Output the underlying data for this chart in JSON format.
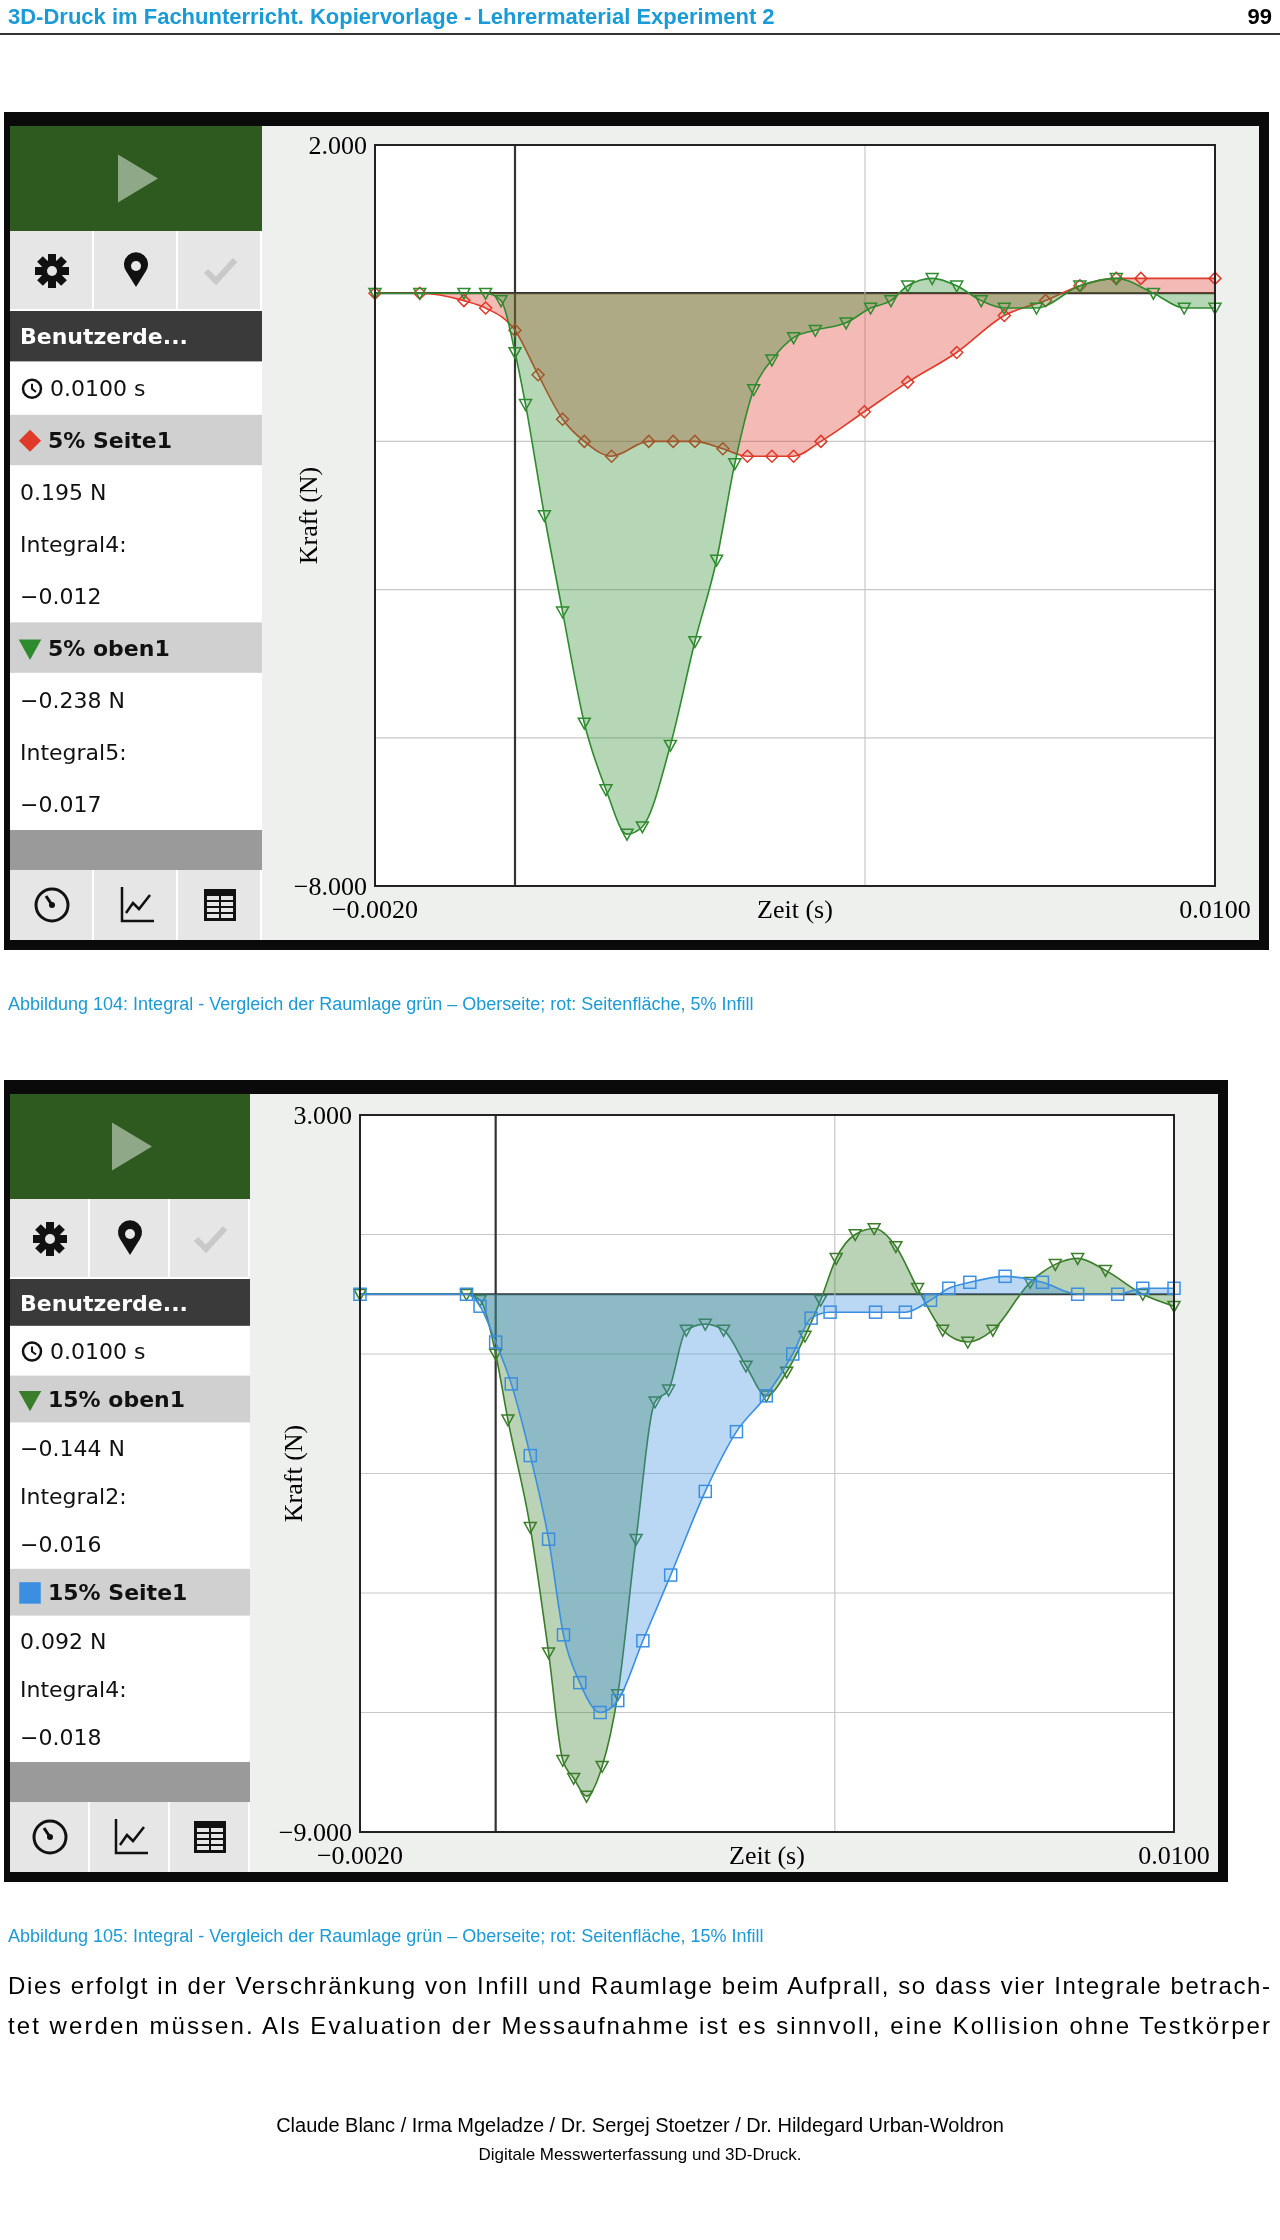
{
  "chart_data": [
    {
      "type": "area",
      "title": "3D-Druck im Fachunterricht. Kopiervorlage - Lehrermaterial Experiment 2",
      "xlabel": "Zeit (s)",
      "ylabel": "Kraft (N)",
      "xlim": [
        -0.002,
        0.01
      ],
      "ylim": [
        -8,
        2
      ],
      "xticks": [
        {
          "value": -0.002,
          "label": "−0.0020"
        },
        {
          "value": 0,
          "label": null
        },
        {
          "value": 0.005,
          "label": null
        },
        {
          "value": 0.01,
          "label": "0.0100"
        }
      ],
      "yticks": [
        {
          "value": 2,
          "label": "2.000"
        },
        {
          "value": 0,
          "label": null
        },
        {
          "value": -2,
          "label": null
        },
        {
          "value": -4,
          "label": null
        },
        {
          "value": -6,
          "label": null
        },
        {
          "value": -8,
          "label": "−8.000"
        }
      ],
      "grid": true,
      "legend": "left",
      "annotations": [
        "Benutzerde...",
        "0.0100 s",
        "0.195 N",
        "Integral4:",
        "−0.012",
        "−0.238 N",
        "Integral5:",
        "−0.017",
        "Abbildung 104: Integral - Vergleich der Raumlage grün – Oberseite; rot: Seitenfläche, 5% Infill",
        "99"
      ],
      "series": [
        {
          "name": "5% Seite1",
          "color": "#e03a2a",
          "marker": "diamond",
          "x": [
            -0.002,
            -0.00136,
            -0.00073,
            -0.00042,
            0.0,
            0.00033,
            0.00068,
            0.00099,
            0.00138,
            0.00191,
            0.00226,
            0.00257,
            0.00297,
            0.00332,
            0.00367,
            0.00398,
            0.00437,
            0.00499,
            0.00561,
            0.00631,
            0.00699,
            0.00758,
            0.00807,
            0.00859,
            0.00894,
            0.01
          ],
          "values": [
            0,
            0,
            -0.1,
            -0.2,
            -0.5,
            -1.1,
            -1.7,
            -2.0,
            -2.2,
            -2.0,
            -2.0,
            -2.0,
            -2.1,
            -2.2,
            -2.2,
            -2.2,
            -2.0,
            -1.6,
            -1.2,
            -0.8,
            -0.3,
            -0.1,
            0.1,
            0.2,
            0.2,
            0.2
          ]
        },
        {
          "name": "5% oben1",
          "color": "#2e8b2e",
          "marker": "triangle",
          "x": [
            -0.002,
            -0.00136,
            -0.00073,
            -0.00042,
            -0.0002,
            0.0,
            0.00015,
            0.00042,
            0.00068,
            0.00099,
            0.0013,
            0.0016,
            0.00182,
            0.00222,
            0.00257,
            0.00288,
            0.00314,
            0.00341,
            0.00367,
            0.00398,
            0.00429,
            0.00473,
            0.00508,
            0.00537,
            0.00561,
            0.00596,
            0.00631,
            0.00666,
            0.00699,
            0.00745,
            0.00807,
            0.00859,
            0.00912,
            0.00956,
            0.01
          ],
          "values": [
            0,
            0,
            0,
            0,
            -0.1,
            -0.8,
            -1.5,
            -3.0,
            -4.3,
            -5.8,
            -6.7,
            -7.3,
            -7.2,
            -6.1,
            -4.7,
            -3.6,
            -2.3,
            -1.3,
            -0.9,
            -0.6,
            -0.5,
            -0.4,
            -0.2,
            -0.1,
            0.1,
            0.2,
            0.1,
            -0.1,
            -0.2,
            -0.2,
            0.1,
            0.2,
            0.0,
            -0.2,
            -0.2
          ]
        }
      ]
    },
    {
      "type": "area",
      "xlabel": "Zeit (s)",
      "ylabel": "Kraft (N)",
      "xlim": [
        -0.002,
        0.01
      ],
      "ylim": [
        -9,
        3
      ],
      "xticks": [
        {
          "value": -0.002,
          "label": "−0.0020"
        },
        {
          "value": 0,
          "label": null
        },
        {
          "value": 0.005,
          "label": null
        },
        {
          "value": 0.01,
          "label": "0.0100"
        }
      ],
      "yticks": [
        {
          "value": 3,
          "label": "3.000"
        },
        {
          "value": 1,
          "label": null
        },
        {
          "value": 0,
          "label": null
        },
        {
          "value": -1,
          "label": null
        },
        {
          "value": -3,
          "label": null
        },
        {
          "value": -5,
          "label": null
        },
        {
          "value": -7,
          "label": null
        },
        {
          "value": -9,
          "label": "−9.000"
        }
      ],
      "grid": true,
      "legend": "left",
      "annotations": [
        "Benutzerde...",
        "0.0100 s",
        "−0.144 N",
        "Integral2:",
        "−0.016",
        "0.092 N",
        "Integral4:",
        "−0.018",
        "Abbildung 105: Integral - Vergleich der Raumlage grün – Oberseite; rot: Seitenfläche, 15% Infill",
        "Dies erfolgt in der Verschränkung von Infill und Raumlage beim Aufprall, so dass vier Integrale betrach-",
        "tet werden müssen. Als Evaluation der Messaufnahme ist es sinnvoll, eine Kollision ohne Testkörper",
        "Claude Blanc / Irma Mgeladze / Dr. Sergej Stoetzer / Dr. Hildegard Urban-Woldron",
        "Digitale Messwerterfassung und 3D-Druck."
      ],
      "series": [
        {
          "name": "15% oben1",
          "color": "#3a7d2a",
          "marker": "triangle",
          "x": [
            -0.002,
            -0.00043,
            -0.00023,
            0.0,
            0.00018,
            0.00051,
            0.00078,
            0.00099,
            0.00115,
            0.00134,
            0.00157,
            0.0018,
            0.00207,
            0.00235,
            0.00255,
            0.00281,
            0.00309,
            0.00336,
            0.00369,
            0.00399,
            0.00429,
            0.00456,
            0.00479,
            0.00502,
            0.0053,
            0.00558,
            0.0059,
            0.00622,
            0.00659,
            0.00696,
            0.00733,
            0.00788,
            0.00825,
            0.00858,
            0.00899,
            0.00954,
            0.01
          ],
          "values": [
            0,
            0,
            -0.1,
            -1.0,
            -2.1,
            -3.9,
            -6.0,
            -7.8,
            -8.1,
            -8.4,
            -7.9,
            -6.7,
            -4.1,
            -1.8,
            -1.6,
            -0.6,
            -0.5,
            -0.6,
            -1.2,
            -1.7,
            -1.3,
            -0.7,
            -0.1,
            0.6,
            1.0,
            1.1,
            0.8,
            0.1,
            -0.6,
            -0.8,
            -0.6,
            0.2,
            0.5,
            0.6,
            0.4,
            0.0,
            -0.2
          ]
        },
        {
          "name": "15% Seite1",
          "color": "#3a8fe0",
          "marker": "square",
          "x": [
            -0.002,
            -0.00043,
            -0.00023,
            0.0,
            0.00023,
            0.00051,
            0.00078,
            0.001,
            0.00124,
            0.00154,
            0.0018,
            0.00217,
            0.00258,
            0.00309,
            0.00355,
            0.00399,
            0.00438,
            0.00465,
            0.00493,
            0.0056,
            0.00604,
            0.00641,
            0.00668,
            0.00699,
            0.00751,
            0.00806,
            0.00858,
            0.00917,
            0.00954,
            0.01
          ],
          "values": [
            0,
            0,
            -0.2,
            -0.8,
            -1.5,
            -2.7,
            -4.1,
            -5.7,
            -6.5,
            -7.0,
            -6.8,
            -5.8,
            -4.7,
            -3.3,
            -2.3,
            -1.7,
            -1.0,
            -0.4,
            -0.3,
            -0.3,
            -0.3,
            -0.1,
            0.1,
            0.2,
            0.3,
            0.2,
            0.0,
            0.0,
            0.1,
            0.1
          ]
        }
      ]
    }
  ]
}
